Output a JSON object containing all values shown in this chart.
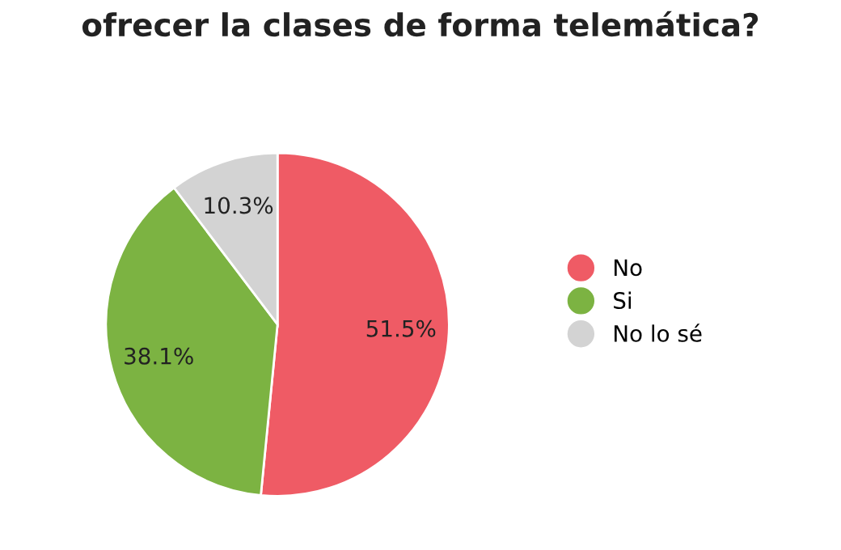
{
  "chart_data": {
    "type": "pie",
    "title": "ofrecer la clases de forma telemática?",
    "categories": [
      "No",
      "Si",
      "No lo sé"
    ],
    "values": [
      51.5,
      38.1,
      10.3
    ],
    "value_labels": [
      "51.5%",
      "38.1%",
      "10.3%"
    ],
    "colors": [
      "#ef5b65",
      "#7cb342",
      "#d3d3d3"
    ],
    "legend": "right"
  }
}
